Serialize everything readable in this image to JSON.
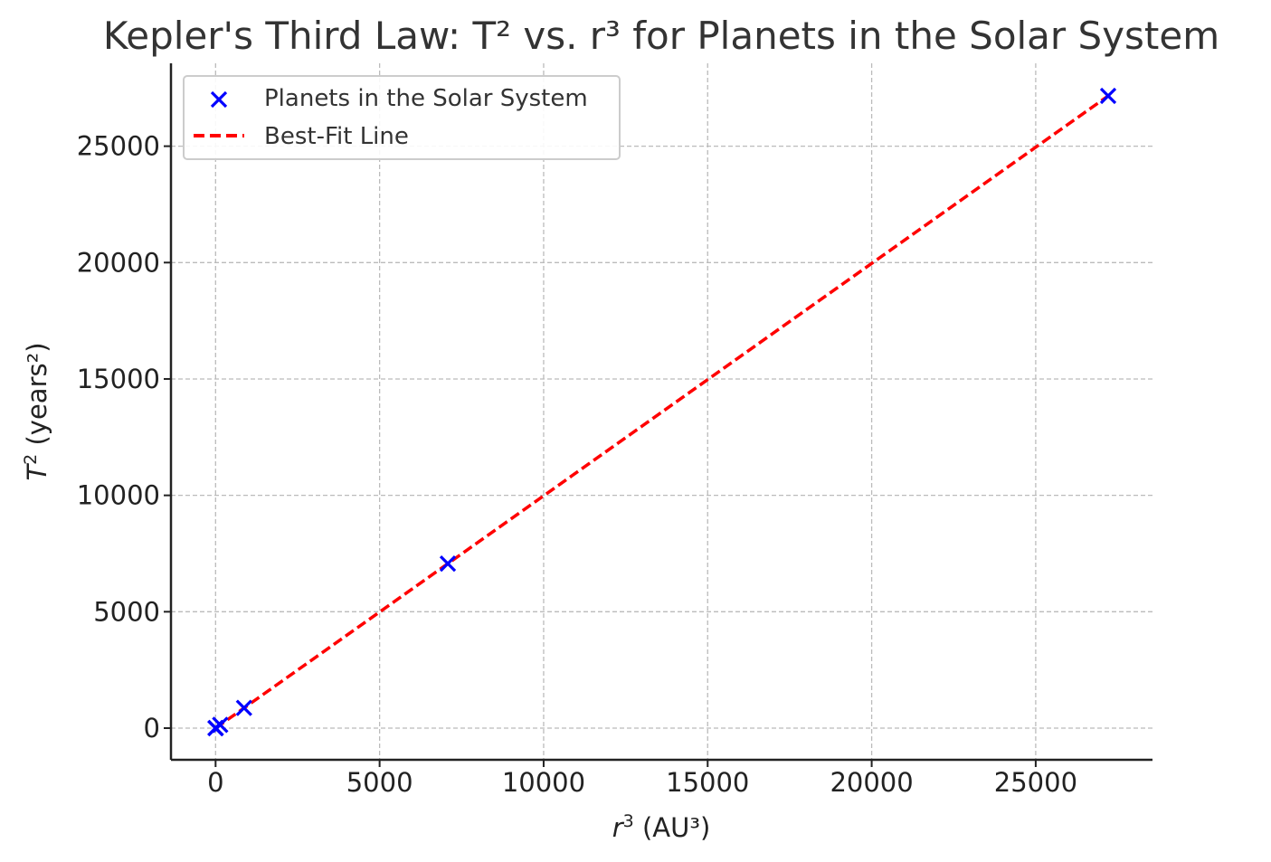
{
  "chart_data": {
    "type": "scatter",
    "title": "Kepler's Third Law: T² vs. r³ for Planets in the Solar System",
    "xlabel": {
      "var": "r",
      "exp": "3",
      "unit": " (AU³)"
    },
    "ylabel": {
      "var": "T",
      "exp": "2",
      "unit": " (years²)"
    },
    "xlim": [
      -1360,
      28560
    ],
    "ylim": [
      -1360,
      28560
    ],
    "xticks": [
      0,
      5000,
      10000,
      15000,
      20000,
      25000
    ],
    "yticks": [
      0,
      5000,
      10000,
      15000,
      20000,
      25000
    ],
    "grid": true,
    "legend_position": "top-left",
    "series": [
      {
        "name": "Planets in the Solar System",
        "kind": "scatter",
        "marker": "x",
        "color": "#0000ff",
        "x": [
          0.058,
          0.378,
          1.0,
          3.54,
          140.6,
          867.9,
          7079,
          27209
        ],
        "y": [
          0.058,
          0.378,
          1.0,
          3.53,
          140.7,
          867.8,
          7068,
          27159
        ]
      },
      {
        "name": "Best-Fit Line",
        "kind": "line",
        "dash": true,
        "color": "#ff0000",
        "x": [
          0.058,
          27209
        ],
        "y": [
          0.058,
          27159
        ]
      }
    ]
  }
}
